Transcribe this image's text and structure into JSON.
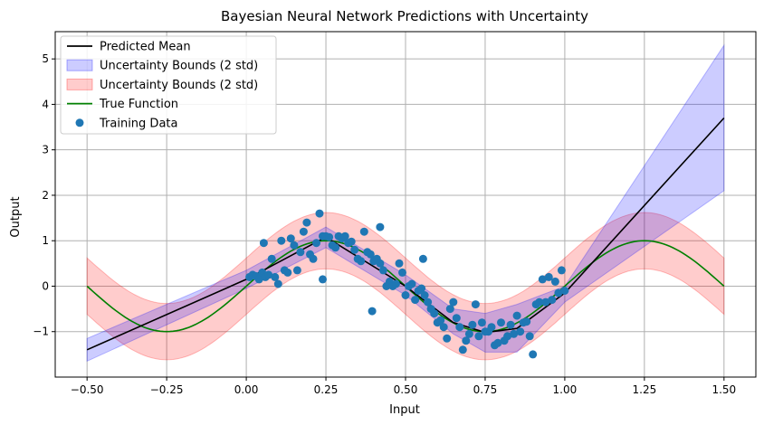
{
  "chart_data": {
    "type": "line",
    "title": "Bayesian Neural Network Predictions with Uncertainty",
    "xlabel": "Input",
    "ylabel": "Output",
    "xlim": [
      -0.6,
      1.6
    ],
    "ylim": [
      -2.0,
      5.6
    ],
    "xticks": [
      -0.5,
      -0.25,
      0.0,
      0.25,
      0.5,
      0.75,
      1.0,
      1.25,
      1.5
    ],
    "xtick_labels": [
      "−0.50",
      "−0.25",
      "0.00",
      "0.25",
      "0.50",
      "0.75",
      "1.00",
      "1.25",
      "1.50"
    ],
    "yticks": [
      -1,
      0,
      1,
      2,
      3,
      4,
      5
    ],
    "ytick_labels": [
      "−1",
      "0",
      "1",
      "2",
      "3",
      "4",
      "5"
    ],
    "grid": true,
    "legend_position": "top-left",
    "legend": [
      {
        "label": "Predicted Mean",
        "kind": "line",
        "color": "#000000"
      },
      {
        "label": "Uncertainty Bounds (2 std)",
        "kind": "patch",
        "color": "#0000ff"
      },
      {
        "label": "Uncertainty Bounds (2 std)",
        "kind": "patch",
        "color": "#ff0000"
      },
      {
        "label": "True Function",
        "kind": "line",
        "color": "#008000"
      },
      {
        "label": "Training Data",
        "kind": "marker",
        "color": "#1f77b4"
      }
    ],
    "colors": {
      "mean": "#000000",
      "blue_band": "#0000ff",
      "red_band": "#ff0000",
      "true_function": "#008000",
      "points": "#1f77b4",
      "grid": "#b0b0b0"
    },
    "predicted_mean": {
      "x": [
        -0.5,
        0.0,
        0.25,
        0.5,
        0.65,
        0.75,
        0.85,
        1.0,
        1.5
      ],
      "y": [
        -1.4,
        0.15,
        1.08,
        0.0,
        -0.8,
        -1.02,
        -0.93,
        -0.15,
        3.7
      ]
    },
    "blue_band": {
      "x": [
        -0.5,
        0.0,
        0.25,
        0.5,
        0.65,
        0.75,
        0.85,
        1.0,
        1.5
      ],
      "lower": [
        -1.65,
        -0.05,
        0.85,
        -0.2,
        -1.05,
        -1.45,
        -1.45,
        -0.35,
        2.1
      ],
      "upper": [
        -1.15,
        0.35,
        1.3,
        0.25,
        -0.5,
        -0.6,
        -0.4,
        0.0,
        5.3
      ]
    },
    "red_band": {
      "x_start": -0.5,
      "x_end": 1.5,
      "half_width": 0.62
    },
    "true_function": {
      "x_start": -0.5,
      "x_end": 1.5,
      "formula": "sin(2πx)"
    },
    "training_data": {
      "x": [
        0.01,
        0.02,
        0.03,
        0.04,
        0.05,
        0.06,
        0.07,
        0.08,
        0.09,
        0.1,
        0.11,
        0.12,
        0.13,
        0.14,
        0.15,
        0.16,
        0.17,
        0.18,
        0.19,
        0.2,
        0.21,
        0.22,
        0.23,
        0.24,
        0.25,
        0.26,
        0.27,
        0.28,
        0.29,
        0.3,
        0.31,
        0.32,
        0.33,
        0.34,
        0.35,
        0.36,
        0.37,
        0.38,
        0.39,
        0.4,
        0.41,
        0.42,
        0.43,
        0.44,
        0.45,
        0.46,
        0.47,
        0.48,
        0.49,
        0.5,
        0.51,
        0.52,
        0.53,
        0.54,
        0.55,
        0.56,
        0.57,
        0.58,
        0.59,
        0.6,
        0.61,
        0.62,
        0.63,
        0.64,
        0.65,
        0.66,
        0.67,
        0.68,
        0.69,
        0.7,
        0.71,
        0.72,
        0.73,
        0.74,
        0.75,
        0.76,
        0.77,
        0.78,
        0.79,
        0.8,
        0.81,
        0.82,
        0.83,
        0.84,
        0.85,
        0.86,
        0.87,
        0.88,
        0.89,
        0.9,
        0.91,
        0.92,
        0.93,
        0.94,
        0.95,
        0.96,
        0.97,
        0.98,
        0.99,
        1.0,
        0.055,
        0.395,
        0.42,
        0.555,
        0.24
      ],
      "y": [
        0.2,
        0.25,
        0.22,
        0.15,
        0.3,
        0.2,
        0.25,
        0.6,
        0.2,
        0.05,
        1.0,
        0.35,
        0.3,
        1.05,
        0.9,
        0.35,
        0.75,
        1.2,
        1.4,
        0.7,
        0.6,
        0.95,
        1.6,
        1.1,
        1.1,
        1.08,
        0.9,
        0.85,
        1.1,
        1.05,
        1.1,
        0.95,
        0.98,
        0.8,
        0.6,
        0.55,
        1.2,
        0.75,
        0.7,
        0.55,
        0.6,
        0.5,
        0.35,
        0.0,
        0.1,
        0.0,
        0.05,
        0.5,
        0.3,
        -0.2,
        0.0,
        0.05,
        -0.3,
        -0.1,
        -0.05,
        -0.2,
        -0.35,
        -0.5,
        -0.6,
        -0.8,
        -0.75,
        -0.9,
        -1.15,
        -0.5,
        -0.35,
        -0.7,
        -0.9,
        -1.4,
        -1.2,
        -1.05,
        -0.85,
        -0.4,
        -1.1,
        -0.8,
        -1.0,
        -1.0,
        -0.9,
        -1.3,
        -1.25,
        -0.8,
        -1.2,
        -1.1,
        -0.85,
        -1.05,
        -0.65,
        -1.0,
        -0.8,
        -0.78,
        -1.1,
        -1.5,
        -0.4,
        -0.35,
        0.15,
        -0.35,
        0.2,
        -0.3,
        0.1,
        -0.15,
        0.35,
        -0.1,
        0.95,
        -0.55,
        1.3,
        0.6,
        0.15
      ]
    }
  }
}
